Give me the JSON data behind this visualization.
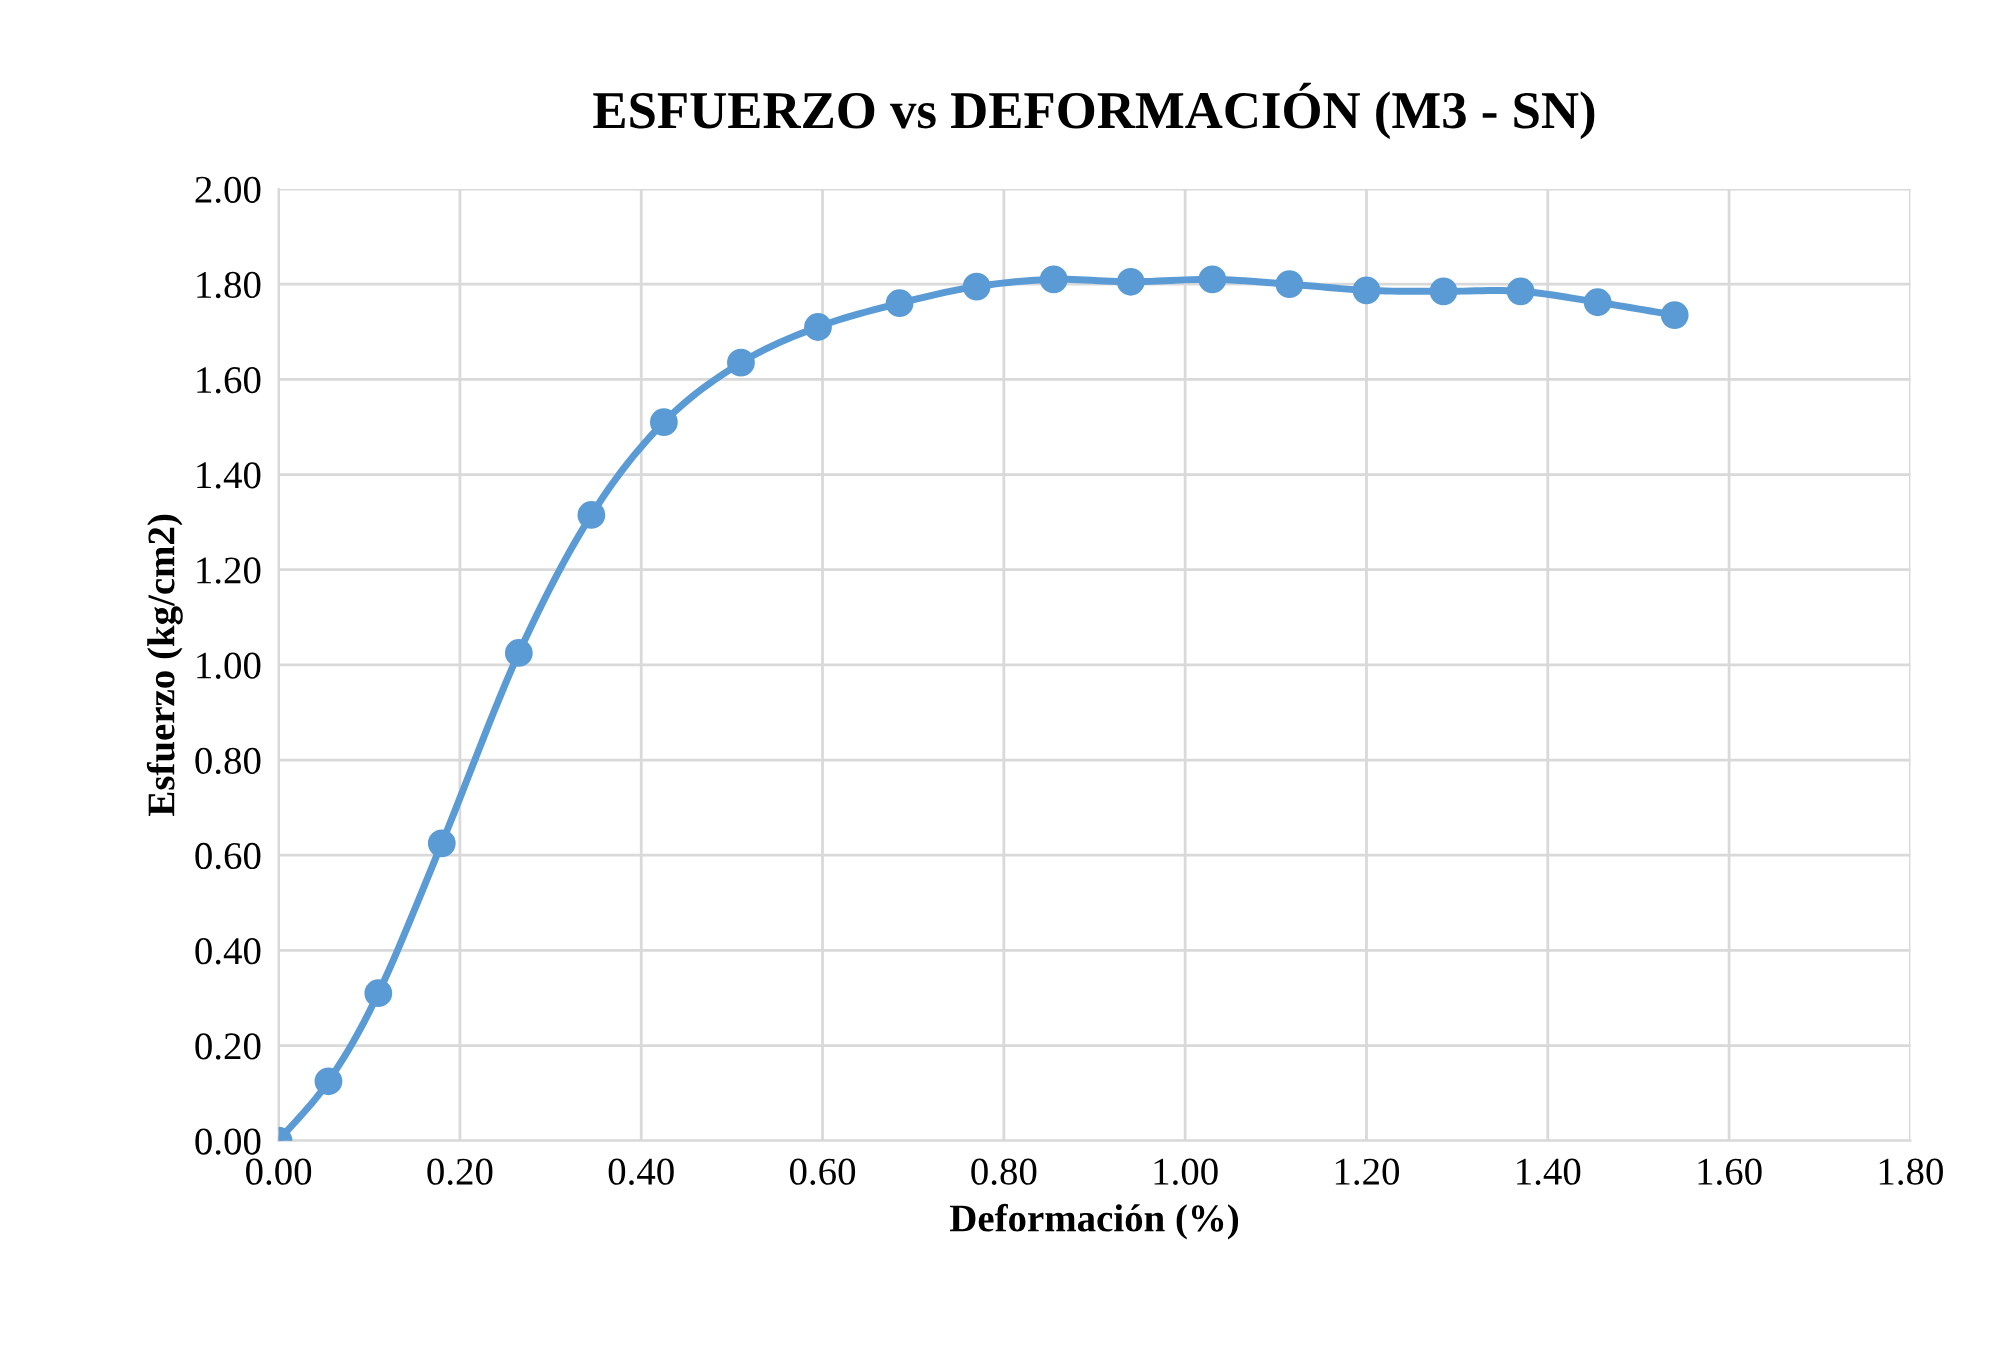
{
  "chart_data": {
    "type": "line",
    "title": "ESFUERZO vs DEFORMACIÓN (M3 - SN)",
    "xlabel": "Deformación (%)",
    "ylabel": "Esfuerzo (kg/cm2)",
    "x": [
      0,
      0.055,
      0.11,
      0.18,
      0.265,
      0.345,
      0.425,
      0.51,
      0.595,
      0.685,
      0.77,
      0.855,
      0.94,
      1.03,
      1.115,
      1.2,
      1.285,
      1.37,
      1.455,
      1.54
    ],
    "series": [
      {
        "color": "#5b9bd5",
        "values": [
          0,
          0.125,
          0.31,
          0.625,
          1.025,
          1.315,
          1.51,
          1.635,
          1.71,
          1.76,
          1.795,
          1.81,
          1.805,
          1.81,
          1.8,
          1.787,
          1.785,
          1.785,
          1.762,
          1.735
        ]
      }
    ],
    "xlim": [
      0,
      1.8
    ],
    "ylim": [
      0,
      2
    ],
    "xticks": [
      {
        "value": 0,
        "label": "0.00"
      },
      {
        "value": 0.2,
        "label": "0.20"
      },
      {
        "value": 0.4,
        "label": "0.40"
      },
      {
        "value": 0.6,
        "label": "0.60"
      },
      {
        "value": 0.8,
        "label": "0.80"
      },
      {
        "value": 1.0,
        "label": "1.00"
      },
      {
        "value": 1.2,
        "label": "1.20"
      },
      {
        "value": 1.4,
        "label": "1.40"
      },
      {
        "value": 1.6,
        "label": "1.60"
      },
      {
        "value": 1.8,
        "label": "1.80"
      }
    ],
    "yticks": [
      {
        "value": 0,
        "label": "0.00"
      },
      {
        "value": 0.2,
        "label": "0.20"
      },
      {
        "value": 0.4,
        "label": "0.40"
      },
      {
        "value": 0.6,
        "label": "0.60"
      },
      {
        "value": 0.8,
        "label": "0.80"
      },
      {
        "value": 1.0,
        "label": "1.00"
      },
      {
        "value": 1.2,
        "label": "1.20"
      },
      {
        "value": 1.4,
        "label": "1.40"
      },
      {
        "value": 1.6,
        "label": "1.60"
      },
      {
        "value": 1.8,
        "label": "1.80"
      },
      {
        "value": 2.0,
        "label": "2.00"
      }
    ],
    "grid": true,
    "marker": "circle",
    "line_style": "solid"
  }
}
